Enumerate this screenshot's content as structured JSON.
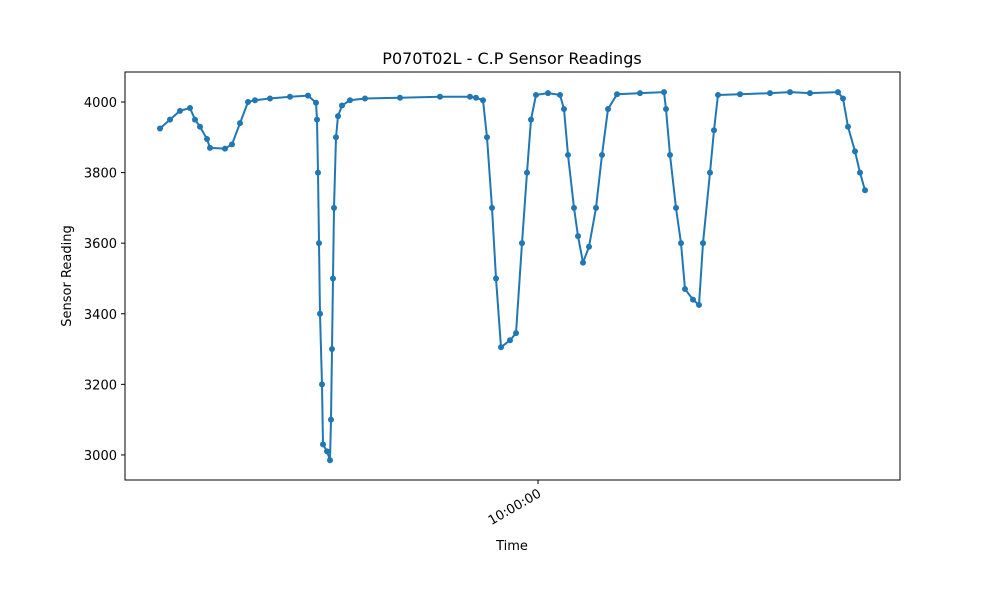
{
  "chart_data": {
    "type": "line",
    "title": "P070T02L - C.P Sensor Readings",
    "x_label": "Time",
    "y_label": "Sensor Reading",
    "x": [
      "09:22:12",
      "09:23:12",
      "09:24:12",
      "09:25:12",
      "09:25:42",
      "09:26:12",
      "09:26:54",
      "09:27:12",
      "09:28:42",
      "09:29:24",
      "09:30:12",
      "09:31:00",
      "09:31:42",
      "09:33:12",
      "09:35:12",
      "09:37:00",
      "09:37:48",
      "09:37:54",
      "09:38:00",
      "09:38:06",
      "09:38:12",
      "09:38:24",
      "09:38:30",
      "09:38:54",
      "09:39:12",
      "09:39:18",
      "09:39:24",
      "09:39:30",
      "09:39:36",
      "09:39:48",
      "09:40:00",
      "09:40:24",
      "09:41:12",
      "09:42:42",
      "09:46:12",
      "09:50:12",
      "09:53:12",
      "09:53:48",
      "09:54:30",
      "09:54:54",
      "09:55:24",
      "09:55:48",
      "09:56:18",
      "09:57:12",
      "09:57:48",
      "09:58:24",
      "09:58:54",
      "09:59:18",
      "09:59:48",
      "10:01:00",
      "10:02:12",
      "10:02:36",
      "10:03:00",
      "10:03:36",
      "10:04:00",
      "10:04:30",
      "10:05:06",
      "10:05:48",
      "10:06:24",
      "10:07:00",
      "10:07:54",
      "10:10:12",
      "10:12:36",
      "10:12:48",
      "10:13:12",
      "10:13:48",
      "10:14:18",
      "10:14:42",
      "10:15:30",
      "10:16:06",
      "10:16:30",
      "10:17:12",
      "10:17:36",
      "10:18:00",
      "10:20:12",
      "10:23:12",
      "10:25:12",
      "10:27:12",
      "10:30:00",
      "10:30:30",
      "10:31:00",
      "10:31:42",
      "10:32:12",
      "10:32:42"
    ],
    "series": [
      {
        "name": "C.P",
        "color": "#1f77b4",
        "values": [
          3925,
          3950,
          3975,
          3983,
          3950,
          3930,
          3895,
          3870,
          3868,
          3880,
          3940,
          4000,
          4005,
          4010,
          4015,
          4018,
          3998,
          3950,
          3800,
          3600,
          3400,
          3200,
          3030,
          3010,
          2985,
          3100,
          3300,
          3500,
          3700,
          3900,
          3960,
          3990,
          4005,
          4010,
          4012,
          4015,
          4015,
          4012,
          4005,
          3900,
          3700,
          3500,
          3305,
          3325,
          3345,
          3600,
          3800,
          3950,
          4020,
          4025,
          4020,
          3980,
          3850,
          3700,
          3620,
          3545,
          3590,
          3700,
          3850,
          3980,
          4022,
          4025,
          4028,
          3980,
          3850,
          3700,
          3600,
          3470,
          3440,
          3425,
          3600,
          3800,
          3920,
          4020,
          4022,
          4025,
          4028,
          4025,
          4028,
          4010,
          3930,
          3860,
          3800,
          3750
        ]
      }
    ],
    "xlim": [
      "09:18:42",
      "10:36:12"
    ],
    "xticks": [
      "10:00:00"
    ],
    "ylim": [
      2929,
      4085
    ],
    "yticks": [
      3000,
      3200,
      3400,
      3600,
      3800,
      4000
    ],
    "grid": false
  }
}
